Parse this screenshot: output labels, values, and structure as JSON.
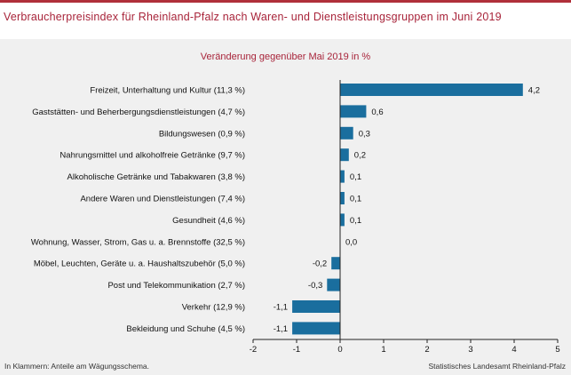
{
  "title": "Verbraucherpreisindex für Rheinland-Pfalz nach Waren- und Dienstleistungsgruppen im Juni 2019",
  "footnote": "In Klammern: Anteile am Wägungsschema.",
  "source": "Statistisches Landesamt Rheinland-Pfalz",
  "colors": {
    "bar": "#1a6e9e",
    "accent": "#a8243a",
    "background": "#f0f0f0"
  },
  "chart_data": {
    "type": "bar",
    "orientation": "horizontal",
    "title": "Veränderung gegenüber Mai 2019 in %",
    "categories": [
      "Freizeit, Unterhaltung und Kultur (11,3 %)",
      "Gaststätten- und Beherbergungsdienstleistungen (4,7 %)",
      "Bildungswesen (0,9 %)",
      "Nahrungsmittel und alkoholfreie Getränke (9,7 %)",
      "Alkoholische Getränke und Tabakwaren (3,8 %)",
      "Andere Waren und Dienstleistungen (7,4 %)",
      "Gesundheit (4,6 %)",
      "Wohnung, Wasser, Strom, Gas u. a. Brennstoffe (32,5 %)",
      "Möbel, Leuchten, Geräte u. a. Haushaltszubehör (5,0 %)",
      "Post und Telekommunikation (2,7 %)",
      "Verkehr (12,9 %)",
      "Bekleidung und Schuhe (4,5 %)"
    ],
    "values": [
      4.2,
      0.6,
      0.3,
      0.2,
      0.1,
      0.1,
      0.1,
      0.0,
      -0.2,
      -0.3,
      -1.1,
      -1.1
    ],
    "value_labels": [
      "4,2",
      "0,6",
      "0,3",
      "0,2",
      "0,1",
      "0,1",
      "0,1",
      "0,0",
      "-0,2",
      "-0,3",
      "-1,1",
      "-1,1"
    ],
    "xlim": [
      -2,
      5
    ],
    "xticks": [
      -2,
      -1,
      0,
      1,
      2,
      3,
      4,
      5
    ],
    "xtick_labels": [
      "-2",
      "-1",
      "0",
      "1",
      "2",
      "3",
      "4",
      "5"
    ],
    "grid": false,
    "legend": "none"
  }
}
